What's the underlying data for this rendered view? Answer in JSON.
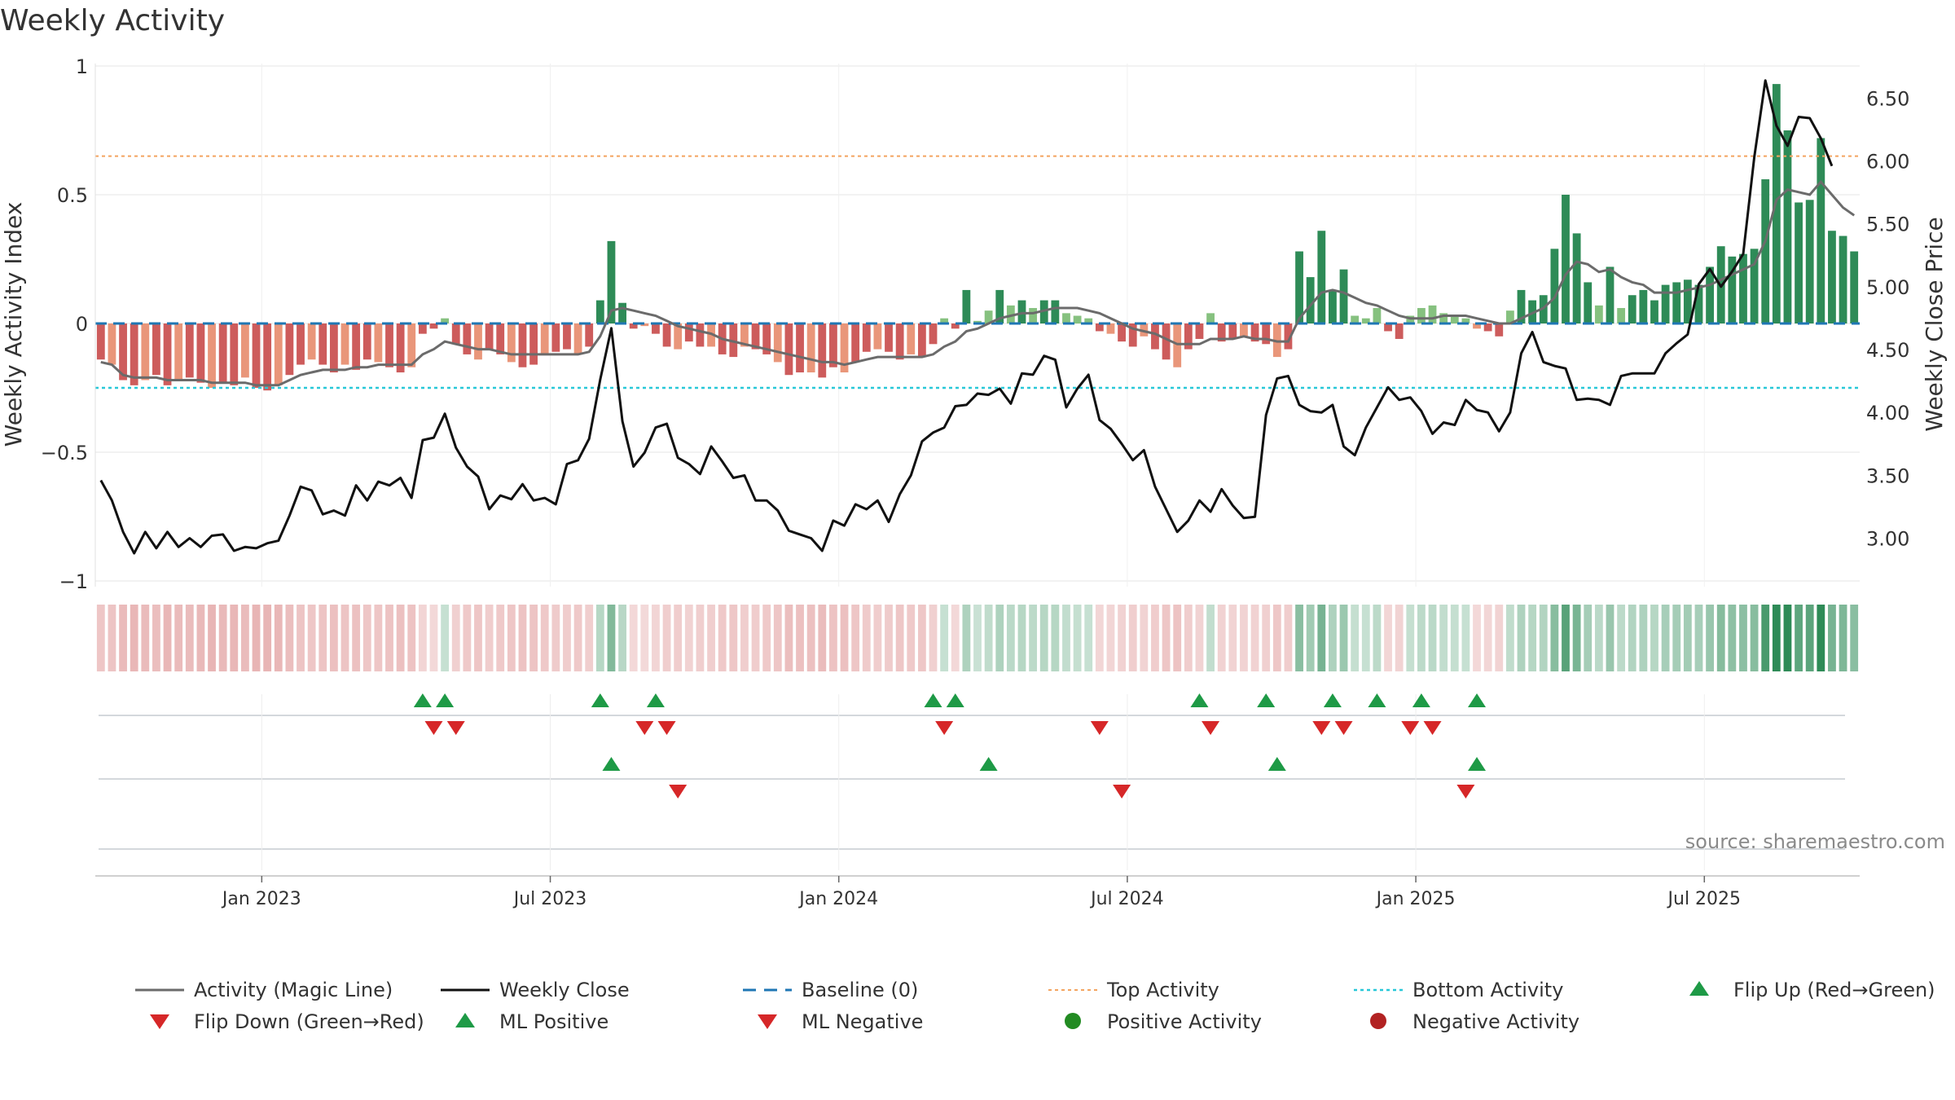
{
  "chart_data": {
    "type": "bar",
    "title": "Weekly Activity",
    "ylabel": "Weekly Activity Index",
    "y2label": "Weekly Close Price",
    "ylim": [
      -1,
      1
    ],
    "y2lim": [
      2.55,
      6.8
    ],
    "yticks": [
      "1",
      "0.5",
      "0",
      "−0.5",
      "−1"
    ],
    "ytick_values": [
      1,
      0.5,
      0,
      -0.5,
      -1
    ],
    "y2ticks": [
      "6.50",
      "6.00",
      "5.50",
      "5.00",
      "4.50",
      "4.00",
      "3.50",
      "3.00"
    ],
    "y2tick_values": [
      6.5,
      6.0,
      5.5,
      5.0,
      4.5,
      4.0,
      3.5,
      3.0
    ],
    "xticks": [
      "Jan 2023",
      "Jul 2023",
      "Jan 2024",
      "Jul 2024",
      "Jan 2025",
      "Jul 2025"
    ],
    "xtick_weeks": [
      15,
      41,
      67,
      93,
      119,
      145
    ],
    "top_activity": 0.65,
    "bottom_activity": -0.25,
    "source": "source: sharemaestro.com",
    "activity": [
      -0.14,
      -0.16,
      -0.22,
      -0.24,
      -0.22,
      -0.2,
      -0.24,
      -0.22,
      -0.21,
      -0.23,
      -0.25,
      -0.23,
      -0.24,
      -0.21,
      -0.25,
      -0.26,
      -0.24,
      -0.2,
      -0.16,
      -0.14,
      -0.16,
      -0.19,
      -0.16,
      -0.18,
      -0.14,
      -0.15,
      -0.17,
      -0.19,
      -0.17,
      -0.04,
      -0.02,
      0.02,
      -0.08,
      -0.12,
      -0.14,
      -0.1,
      -0.12,
      -0.15,
      -0.17,
      -0.16,
      -0.12,
      -0.11,
      -0.1,
      -0.12,
      -0.09,
      0.09,
      0.32,
      0.08,
      -0.02,
      -0.01,
      -0.04,
      -0.09,
      -0.1,
      -0.07,
      -0.09,
      -0.09,
      -0.12,
      -0.13,
      -0.09,
      -0.1,
      -0.12,
      -0.15,
      -0.2,
      -0.19,
      -0.19,
      -0.21,
      -0.17,
      -0.19,
      -0.15,
      -0.11,
      -0.1,
      -0.11,
      -0.14,
      -0.12,
      -0.13,
      -0.08,
      0.02,
      -0.02,
      0.13,
      0.01,
      0.05,
      0.13,
      0.07,
      0.09,
      0.06,
      0.09,
      0.09,
      0.04,
      0.03,
      0.02,
      -0.03,
      -0.04,
      -0.07,
      -0.09,
      -0.05,
      -0.1,
      -0.14,
      -0.17,
      -0.1,
      -0.06,
      0.04,
      -0.07,
      -0.06,
      -0.05,
      -0.07,
      -0.08,
      -0.13,
      -0.1,
      0.28,
      0.18,
      0.36,
      0.13,
      0.21,
      0.03,
      0.02,
      0.06,
      -0.03,
      -0.06,
      0.03,
      0.06,
      0.07,
      0.04,
      0.03,
      0.02,
      -0.02,
      -0.03,
      -0.05,
      0.05,
      0.13,
      0.09,
      0.11,
      0.29,
      0.5,
      0.35,
      0.16,
      0.07,
      0.22,
      0.06,
      0.11,
      0.13,
      0.09,
      0.15,
      0.16,
      0.17,
      0.15,
      0.22,
      0.3,
      0.26,
      0.27,
      0.29,
      0.56,
      0.93,
      0.75,
      0.47,
      0.48,
      0.72,
      0.36,
      0.34,
      0.28
    ],
    "magic_line": [
      -0.15,
      -0.16,
      -0.2,
      -0.21,
      -0.21,
      -0.21,
      -0.22,
      -0.22,
      -0.22,
      -0.22,
      -0.23,
      -0.23,
      -0.23,
      -0.23,
      -0.24,
      -0.24,
      -0.24,
      -0.22,
      -0.2,
      -0.19,
      -0.18,
      -0.18,
      -0.18,
      -0.17,
      -0.17,
      -0.16,
      -0.16,
      -0.16,
      -0.16,
      -0.12,
      -0.1,
      -0.07,
      -0.08,
      -0.09,
      -0.1,
      -0.1,
      -0.11,
      -0.12,
      -0.12,
      -0.12,
      -0.12,
      -0.12,
      -0.12,
      -0.12,
      -0.11,
      -0.05,
      0.05,
      0.06,
      0.05,
      0.04,
      0.03,
      0.01,
      -0.01,
      -0.02,
      -0.03,
      -0.04,
      -0.06,
      -0.07,
      -0.08,
      -0.09,
      -0.1,
      -0.11,
      -0.12,
      -0.13,
      -0.14,
      -0.15,
      -0.15,
      -0.16,
      -0.15,
      -0.14,
      -0.13,
      -0.13,
      -0.13,
      -0.13,
      -0.13,
      -0.12,
      -0.09,
      -0.07,
      -0.03,
      -0.02,
      0.0,
      0.02,
      0.03,
      0.04,
      0.04,
      0.05,
      0.06,
      0.06,
      0.06,
      0.05,
      0.04,
      0.02,
      0.0,
      -0.02,
      -0.03,
      -0.04,
      -0.06,
      -0.08,
      -0.08,
      -0.08,
      -0.06,
      -0.06,
      -0.06,
      -0.05,
      -0.06,
      -0.06,
      -0.07,
      -0.07,
      0.02,
      0.07,
      0.12,
      0.13,
      0.12,
      0.1,
      0.08,
      0.07,
      0.05,
      0.03,
      0.02,
      0.02,
      0.02,
      0.03,
      0.03,
      0.03,
      0.02,
      0.01,
      0.0,
      0.0,
      0.02,
      0.04,
      0.06,
      0.1,
      0.19,
      0.24,
      0.23,
      0.2,
      0.21,
      0.18,
      0.16,
      0.15,
      0.12,
      0.12,
      0.12,
      0.13,
      0.14,
      0.15,
      0.17,
      0.19,
      0.21,
      0.23,
      0.32,
      0.48,
      0.52,
      0.51,
      0.5,
      0.55,
      0.5,
      0.45,
      0.42
    ],
    "weekly_close": [
      3.46,
      3.3,
      3.05,
      2.88,
      3.05,
      2.92,
      3.05,
      2.93,
      3.0,
      2.93,
      3.02,
      3.03,
      2.9,
      2.93,
      2.92,
      2.96,
      2.98,
      3.18,
      3.41,
      3.38,
      3.19,
      3.22,
      3.18,
      3.42,
      3.3,
      3.45,
      3.42,
      3.48,
      3.32,
      3.78,
      3.8,
      3.99,
      3.72,
      3.57,
      3.49,
      3.23,
      3.34,
      3.31,
      3.43,
      3.3,
      3.32,
      3.27,
      3.59,
      3.62,
      3.79,
      4.26,
      4.67,
      3.93,
      3.57,
      3.68,
      3.88,
      3.91,
      3.64,
      3.59,
      3.51,
      3.73,
      3.61,
      3.48,
      3.5,
      3.3,
      3.3,
      3.22,
      3.06,
      3.03,
      3.0,
      2.9,
      3.14,
      3.1,
      3.27,
      3.23,
      3.3,
      3.13,
      3.35,
      3.5,
      3.77,
      3.84,
      3.88,
      4.05,
      4.06,
      4.15,
      4.14,
      4.19,
      4.07,
      4.31,
      4.3,
      4.45,
      4.42,
      4.04,
      4.19,
      4.3,
      3.94,
      3.87,
      3.75,
      3.62,
      3.7,
      3.41,
      3.23,
      3.05,
      3.14,
      3.3,
      3.21,
      3.39,
      3.26,
      3.16,
      3.17,
      3.98,
      4.27,
      4.29,
      4.06,
      4.01,
      4.0,
      4.06,
      3.73,
      3.66,
      3.88,
      4.04,
      4.2,
      4.1,
      4.12,
      4.01,
      3.83,
      3.92,
      3.9,
      4.1,
      4.02,
      4.0,
      3.85,
      4.0,
      4.47,
      4.64,
      4.4,
      4.37,
      4.35,
      4.1,
      4.11,
      4.1,
      4.06,
      4.29,
      4.31,
      4.31,
      4.31,
      4.47,
      4.55,
      4.62,
      5.02,
      5.14,
      5.0,
      5.12,
      5.26,
      6.03,
      6.64,
      6.28,
      6.12,
      6.35,
      6.34,
      6.18,
      5.96
    ],
    "flip_up": [
      29,
      31,
      45,
      50,
      75,
      77,
      99,
      105,
      111,
      115,
      119,
      124
    ],
    "flip_down": [
      30,
      32,
      49,
      51,
      76,
      90,
      100,
      110,
      112,
      118,
      120
    ],
    "ml_positive": [
      46,
      80,
      106,
      124
    ],
    "ml_negative": [
      52,
      92,
      123
    ],
    "legend": [
      {
        "label": "Activity (Magic Line)",
        "kind": "line-gray"
      },
      {
        "label": "Weekly Close",
        "kind": "line-black"
      },
      {
        "label": "Baseline (0)",
        "kind": "line-dash-blue"
      },
      {
        "label": "Top Activity",
        "kind": "line-dot-orange"
      },
      {
        "label": "Bottom Activity",
        "kind": "line-dot-cyan"
      },
      {
        "label": "Flip Up (Red→Green)",
        "kind": "tri-up"
      },
      {
        "label": "Flip Down (Green→Red)",
        "kind": "tri-down"
      },
      {
        "label": "ML Positive",
        "kind": "tri-up"
      },
      {
        "label": "ML Negative",
        "kind": "tri-down"
      },
      {
        "label": "Positive Activity",
        "kind": "dot-green"
      },
      {
        "label": "Negative Activity",
        "kind": "dot-red"
      }
    ],
    "colors": {
      "pos_strong": "#2e8b57",
      "pos_light": "#86c17f",
      "neg_strong": "#cd5c5c",
      "neg_light": "#e9967a",
      "magic_line": "#6b6b6b",
      "close": "#111111",
      "baseline": "#1f77b4",
      "top": "#f4a460",
      "bottom": "#28c8d8",
      "flip_up": "#1e9a46",
      "flip_down": "#d62728",
      "dot_green": "#228b22",
      "dot_red": "#b22222"
    }
  }
}
